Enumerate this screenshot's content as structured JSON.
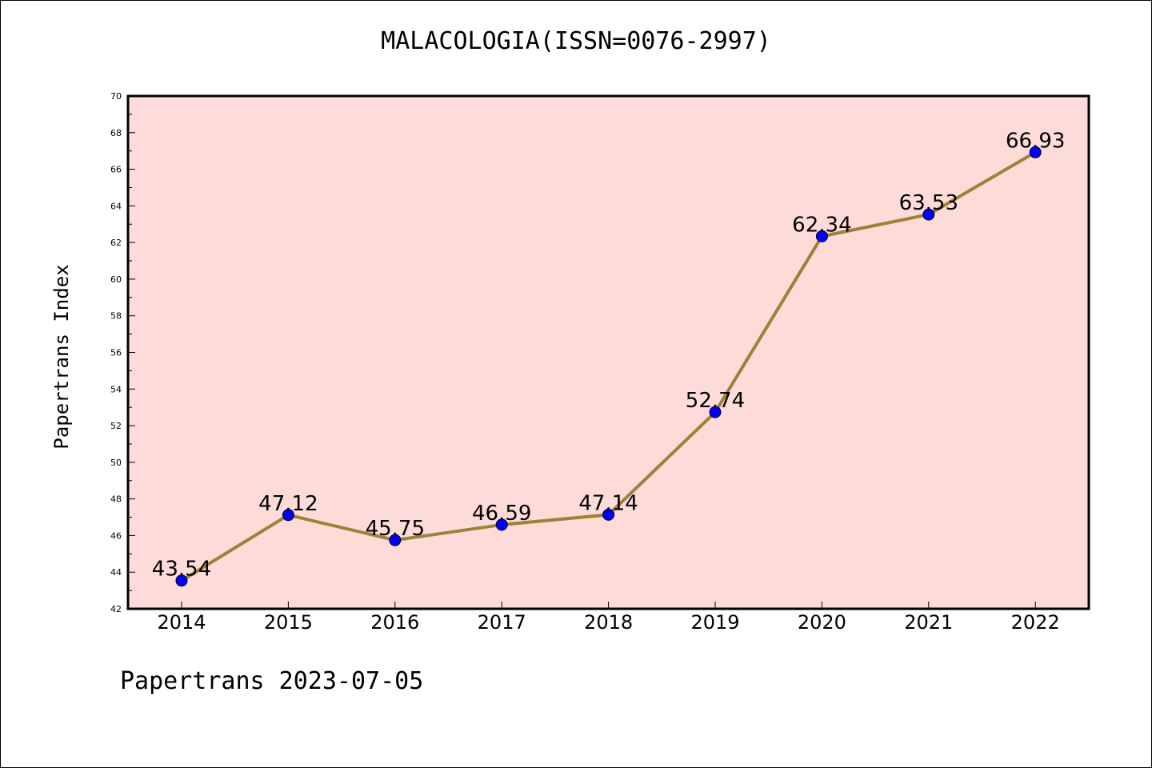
{
  "chart_title": "MALACOLOGIA(ISSN=0076-2997)",
  "ylabel": "Papertrans Index",
  "footer": "Papertrans 2023-07-05",
  "colors": {
    "plot_background": "#fddbd8",
    "line": "#9b8238",
    "marker": "#0000ff"
  },
  "chart_data": {
    "type": "line",
    "title": "MALACOLOGIA(ISSN=0076-2997)",
    "xlabel": "",
    "ylabel": "Papertrans Index",
    "categories": [
      "2014",
      "2015",
      "2016",
      "2017",
      "2018",
      "2019",
      "2020",
      "2021",
      "2022"
    ],
    "series": [
      {
        "values": [
          43.54,
          47.12,
          45.75,
          46.59,
          47.14,
          52.74,
          62.34,
          63.53,
          66.93
        ],
        "labels": [
          "43.54",
          "47.12",
          "45.75",
          "46.59",
          "47.14",
          "52.74",
          "62.34",
          "63.53",
          "66.93"
        ]
      }
    ],
    "ylim": [
      42,
      70
    ],
    "yticks": [
      "42",
      "44",
      "46",
      "48",
      "50",
      "52",
      "54",
      "56",
      "58",
      "60",
      "62",
      "64",
      "66",
      "68",
      "70"
    ],
    "grid": false,
    "legend": "none"
  }
}
